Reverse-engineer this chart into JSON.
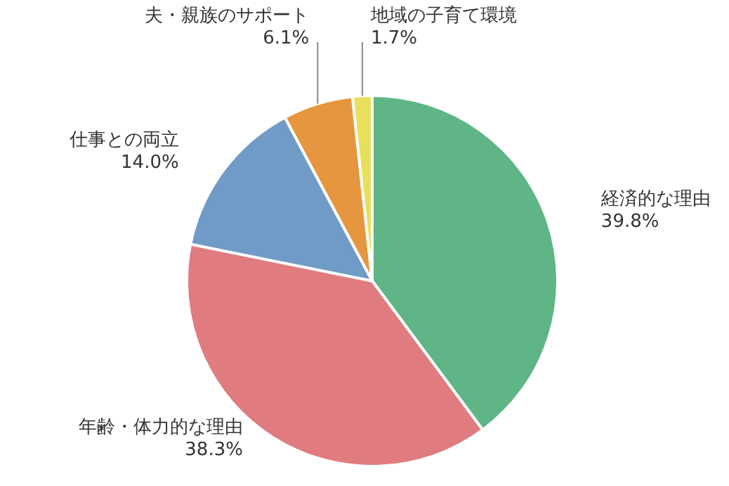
{
  "chart_data": {
    "type": "pie",
    "categories": [
      "経済的な理由",
      "年齢・体力的な理由",
      "仕事との両立",
      "夫・親族のサポート",
      "地域の子育て環境"
    ],
    "values": [
      39.8,
      38.3,
      14.0,
      6.1,
      1.7
    ],
    "value_labels": [
      "39.8%",
      "38.3%",
      "14.0%",
      "6.1%",
      "1.7%"
    ],
    "colors": [
      "#5fb585",
      "#e07b80",
      "#6f9bc6",
      "#e5963f",
      "#e8e05a"
    ]
  }
}
